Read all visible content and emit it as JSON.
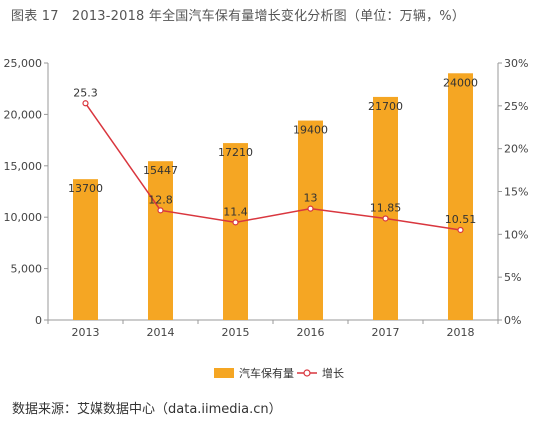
{
  "title": "图表 17　2013-2018 年全国汽车保有量增长变化分析图（单位：万辆，%）",
  "source": "数据来源：艾媒数据中心（data.iimedia.cn）",
  "chart_data": {
    "type": "bar",
    "categories": [
      "2013",
      "2014",
      "2015",
      "2016",
      "2017",
      "2018"
    ],
    "series": [
      {
        "name": "汽车保有量",
        "type": "bar",
        "axis": "left",
        "values": [
          13700,
          15447,
          17210,
          19400,
          21700,
          24000
        ],
        "labels": [
          "13700",
          "15447",
          "17210",
          "19400",
          "21700",
          "24000"
        ],
        "color": "#F5A623"
      },
      {
        "name": "增长",
        "type": "line",
        "axis": "right",
        "values": [
          25.3,
          12.8,
          11.4,
          13,
          11.85,
          10.51
        ],
        "labels": [
          "25.3",
          "12.8",
          "11.4",
          "13",
          "11.85",
          "10.51"
        ],
        "color": "#D9363E"
      }
    ],
    "y_left": {
      "min": 0,
      "max": 25000,
      "ticks": [
        "0",
        "5,000",
        "10,000",
        "15,000",
        "20,000",
        "25,000"
      ]
    },
    "y_right": {
      "min": 0,
      "max": 30,
      "ticks": [
        "0%",
        "5%",
        "10%",
        "15%",
        "20%",
        "25%",
        "30%"
      ]
    },
    "grid": false,
    "legend_position": "bottom"
  }
}
